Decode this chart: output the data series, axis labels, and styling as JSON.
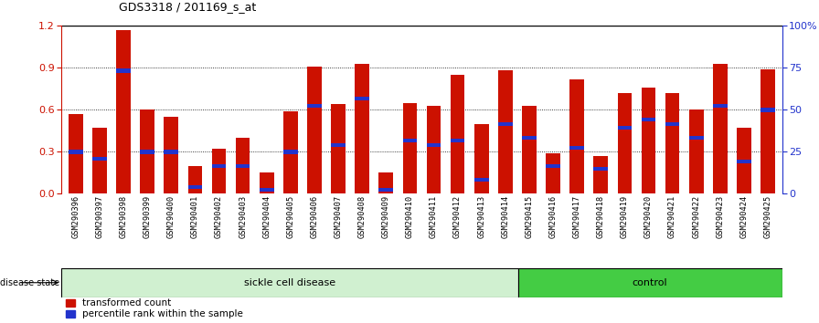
{
  "title": "GDS3318 / 201169_s_at",
  "samples": [
    "GSM290396",
    "GSM290397",
    "GSM290398",
    "GSM290399",
    "GSM290400",
    "GSM290401",
    "GSM290402",
    "GSM290403",
    "GSM290404",
    "GSM290405",
    "GSM290406",
    "GSM290407",
    "GSM290408",
    "GSM290409",
    "GSM290410",
    "GSM290411",
    "GSM290412",
    "GSM290413",
    "GSM290414",
    "GSM290415",
    "GSM290416",
    "GSM290417",
    "GSM290418",
    "GSM290419",
    "GSM290420",
    "GSM290421",
    "GSM290422",
    "GSM290423",
    "GSM290424",
    "GSM290425"
  ],
  "red_values": [
    0.57,
    0.47,
    1.17,
    0.6,
    0.55,
    0.2,
    0.32,
    0.4,
    0.15,
    0.59,
    0.91,
    0.64,
    0.93,
    0.15,
    0.65,
    0.63,
    0.85,
    0.5,
    0.88,
    0.63,
    0.29,
    0.82,
    0.27,
    0.72,
    0.76,
    0.72,
    0.6,
    0.93,
    0.47,
    0.89
  ],
  "blue_positions": [
    0.3,
    0.25,
    0.88,
    0.3,
    0.3,
    0.05,
    0.2,
    0.2,
    0.03,
    0.3,
    0.63,
    0.35,
    0.68,
    0.03,
    0.38,
    0.35,
    0.38,
    0.1,
    0.5,
    0.4,
    0.2,
    0.33,
    0.18,
    0.47,
    0.53,
    0.5,
    0.4,
    0.63,
    0.23,
    0.6
  ],
  "sickle_count": 19,
  "control_count": 11,
  "ylim_left": [
    0,
    1.2
  ],
  "ylim_right": [
    0,
    100
  ],
  "yticks_left": [
    0,
    0.3,
    0.6,
    0.9,
    1.2
  ],
  "yticks_right": [
    0,
    25,
    50,
    75,
    100
  ],
  "bar_color": "#cc1100",
  "blue_color": "#2233cc",
  "sickle_color": "#d0f0d0",
  "control_color": "#44cc44",
  "tick_bg_color": "#d8d8d8",
  "title_fontsize": 9
}
